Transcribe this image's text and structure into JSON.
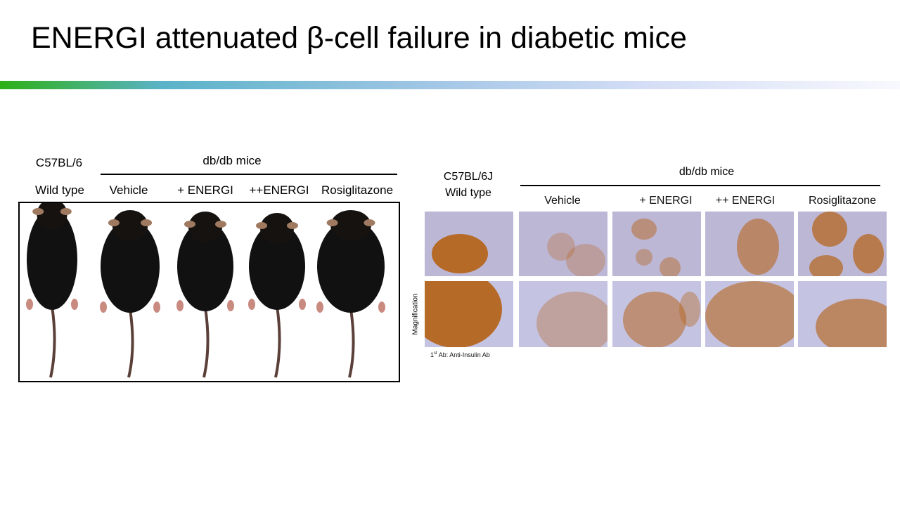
{
  "slide": {
    "title": "ENERGI attenuated β-cell failure in diabetic mice"
  },
  "colors": {
    "bar_start": "#2db014",
    "bar_mid": "#5ab3c8",
    "bar_end": "#f8f9fe",
    "tissue": "#bcb6d8",
    "insulin_stain": "#b5651d"
  },
  "left_figure": {
    "strain": "C57BL/6",
    "group": "db/db mice",
    "columns": [
      "Wild type",
      "Vehicle",
      "+ ENERGI",
      "++ENERGI",
      "Rosiglitazone"
    ]
  },
  "right_figure": {
    "strain": "C57BL/6J",
    "strain_sub": "Wild type",
    "group": "db/db mice",
    "columns": [
      "Vehicle",
      "+ ENERGI",
      "++ ENERGI",
      "Rosiglitazone"
    ],
    "row_label": "Magnification",
    "caption_sup": "st",
    "caption_pre": "1",
    "caption": " Ab: Anti-Insulin Ab"
  }
}
